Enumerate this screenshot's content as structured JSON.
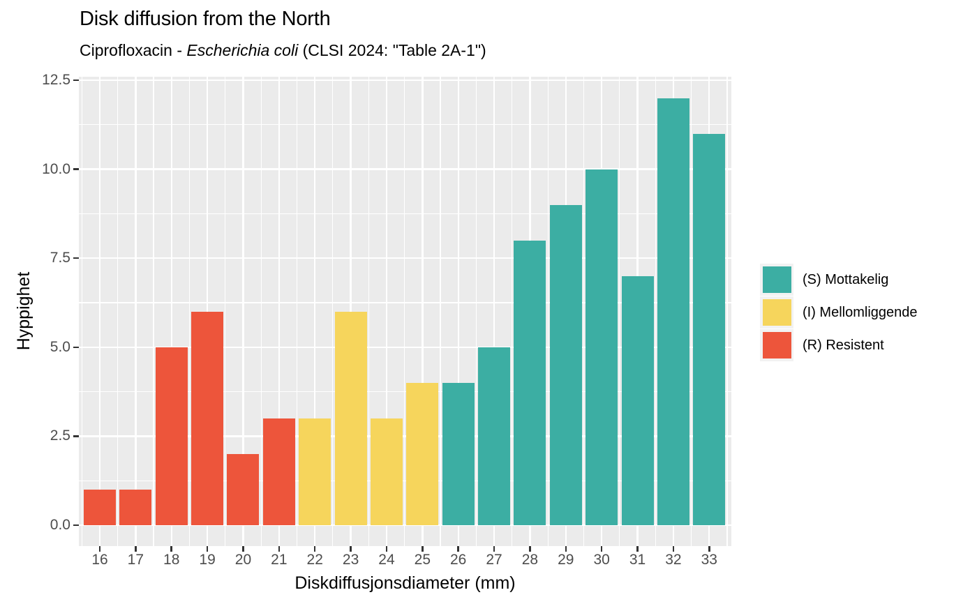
{
  "chart_data": {
    "type": "bar",
    "title": "Disk diffusion from the North",
    "subtitle": {
      "prefix": "Ciprofloxacin - ",
      "italic": "Escherichia coli",
      "suffix": " (CLSI 2024: \"Table 2A-1\")"
    },
    "xlabel": "Diskdiffusjonsdiameter (mm)",
    "ylabel": "Hyppighet",
    "x": [
      16,
      17,
      18,
      19,
      20,
      21,
      22,
      23,
      24,
      25,
      26,
      27,
      28,
      29,
      30,
      31,
      32,
      33
    ],
    "x_tick_labels": [
      "16",
      "17",
      "18",
      "19",
      "20",
      "21",
      "22",
      "23",
      "24",
      "25",
      "26",
      "27",
      "28",
      "29",
      "30",
      "31",
      "32",
      "33"
    ],
    "values": [
      1,
      1,
      5,
      6,
      2,
      3,
      3,
      6,
      3,
      4,
      4,
      5,
      8,
      9,
      10,
      7,
      12,
      11
    ],
    "categories": [
      "R",
      "R",
      "R",
      "R",
      "R",
      "R",
      "I",
      "I",
      "I",
      "I",
      "S",
      "S",
      "S",
      "S",
      "S",
      "S",
      "S",
      "S"
    ],
    "ylim": [
      0,
      12.5
    ],
    "y_major_ticks": [
      0,
      2.5,
      5,
      7.5,
      10,
      12.5
    ],
    "y_tick_labels": [
      "0.0",
      "2.5",
      "5.0",
      "7.5",
      "10.0",
      "12.5"
    ],
    "y_minor_ticks": [
      1.25,
      3.75,
      6.25,
      8.75,
      11.25
    ],
    "x_minor_ticks": [
      15.5,
      16.5,
      17.5,
      18.5,
      19.5,
      20.5,
      21.5,
      22.5,
      23.5,
      24.5,
      25.5,
      26.5,
      27.5,
      28.5,
      29.5,
      30.5,
      31.5,
      32.5,
      33.5
    ],
    "grid": "major and minor white gridlines on grey panel",
    "legend_position": "right",
    "legend": [
      {
        "id": "S",
        "label": "(S) Mottakelig",
        "color": "#3CAEA3"
      },
      {
        "id": "I",
        "label": "(I) Mellomliggende",
        "color": "#F6D55C"
      },
      {
        "id": "R",
        "label": "(R) Resistent",
        "color": "#ED553B"
      }
    ],
    "colors": {
      "S": "#3CAEA3",
      "I": "#F6D55C",
      "R": "#ED553B",
      "panel_background": "#EBEBEB",
      "gridline": "#FFFFFF",
      "tick_mark": "#333333",
      "tick_label": "#4D4D4D",
      "text": "#000000"
    }
  }
}
